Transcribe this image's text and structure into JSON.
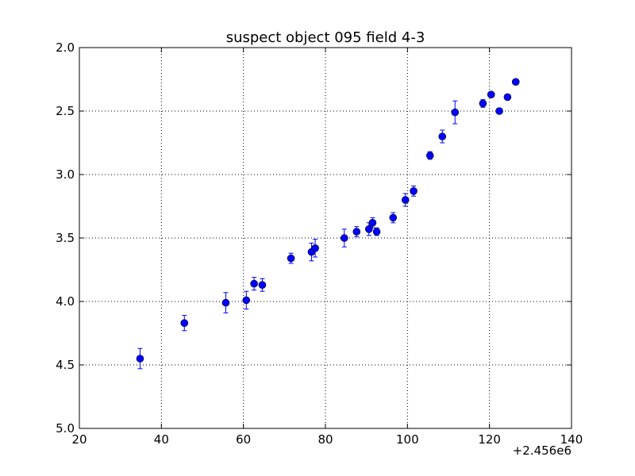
{
  "chart_data": {
    "type": "scatter",
    "title": "suspect object 095 field 4-3",
    "xlabel": "",
    "ylabel": "",
    "x_offset_label": "+2.456e6",
    "xlim": [
      20,
      140
    ],
    "ylim": [
      5.0,
      2.0
    ],
    "y_inverted": true,
    "grid": true,
    "x_ticks": [
      "20",
      "40",
      "60",
      "80",
      "100",
      "120",
      "140"
    ],
    "y_ticks": [
      "2.0",
      "2.5",
      "3.0",
      "3.5",
      "4.0",
      "4.5",
      "5.0"
    ],
    "marker_color": "#0000ff",
    "points": [
      {
        "x": 34.8,
        "y": 4.45,
        "err": 0.08
      },
      {
        "x": 45.6,
        "y": 4.17,
        "err": 0.06
      },
      {
        "x": 55.7,
        "y": 4.01,
        "err": 0.08
      },
      {
        "x": 60.7,
        "y": 3.99,
        "err": 0.07
      },
      {
        "x": 62.6,
        "y": 3.86,
        "err": 0.05
      },
      {
        "x": 64.6,
        "y": 3.87,
        "err": 0.05
      },
      {
        "x": 71.6,
        "y": 3.66,
        "err": 0.04
      },
      {
        "x": 76.6,
        "y": 3.61,
        "err": 0.07
      },
      {
        "x": 77.5,
        "y": 3.58,
        "err": 0.07
      },
      {
        "x": 84.6,
        "y": 3.5,
        "err": 0.07
      },
      {
        "x": 87.6,
        "y": 3.45,
        "err": 0.04
      },
      {
        "x": 90.6,
        "y": 3.43,
        "err": 0.05
      },
      {
        "x": 91.5,
        "y": 3.38,
        "err": 0.04
      },
      {
        "x": 92.5,
        "y": 3.45,
        "err": 0.03
      },
      {
        "x": 96.5,
        "y": 3.34,
        "err": 0.04
      },
      {
        "x": 99.5,
        "y": 3.2,
        "err": 0.05
      },
      {
        "x": 101.5,
        "y": 3.13,
        "err": 0.04
      },
      {
        "x": 105.5,
        "y": 2.85,
        "err": 0.03
      },
      {
        "x": 108.5,
        "y": 2.7,
        "err": 0.05
      },
      {
        "x": 111.6,
        "y": 2.51,
        "err": 0.09
      },
      {
        "x": 118.4,
        "y": 2.44,
        "err": 0.03
      },
      {
        "x": 120.4,
        "y": 2.37,
        "err": 0.02
      },
      {
        "x": 122.4,
        "y": 2.5,
        "err": 0.02
      },
      {
        "x": 124.4,
        "y": 2.39,
        "err": 0.02
      },
      {
        "x": 126.4,
        "y": 2.27,
        "err": 0.02
      }
    ]
  }
}
